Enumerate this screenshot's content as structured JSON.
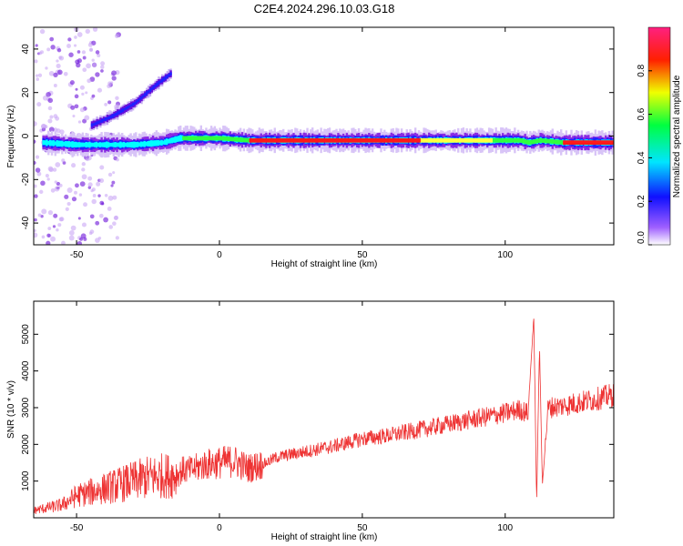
{
  "title": "C2E4.2024.296.10.03.G18",
  "colorbar": {
    "label": "Normalized spectral amplitude",
    "ticks": [
      "0.0",
      "0.2",
      "0.4",
      "0.6",
      "0.8"
    ]
  },
  "chart_data": [
    {
      "type": "heatmap",
      "xlabel": "Height of straight line (km)",
      "ylabel": "Frequency (Hz)",
      "xlim": [
        -65,
        138
      ],
      "ylim": [
        -50,
        50
      ],
      "xticks": [
        -50,
        0,
        50,
        100
      ],
      "yticks": [
        40,
        20,
        0,
        -20,
        -40
      ],
      "colorbar_range": [
        0,
        1
      ],
      "colors": [
        "#ffffff",
        "#7f00ff",
        "#0000ff",
        "#00ffff",
        "#00ff00",
        "#ffff00",
        "#ff0000",
        "#ff1493"
      ],
      "ridges": [
        {
          "x": [
            -62,
            -50,
            -40,
            -30,
            -20,
            -14,
            -5,
            0,
            10,
            30,
            60,
            90,
            105,
            108,
            112,
            120,
            138
          ],
          "y": [
            -3,
            -4,
            -4,
            -4,
            -3,
            -1,
            -1,
            -1,
            -2,
            -2,
            -2,
            -2,
            -2,
            -3,
            -2,
            -3,
            -3
          ]
        },
        {
          "x": [
            -45,
            -38,
            -30,
            -22,
            -17
          ],
          "y": [
            5,
            9,
            15,
            24,
            29
          ]
        }
      ]
    },
    {
      "type": "line",
      "xlabel": "Height of straight line (km)",
      "ylabel": "SNR (10 * v/v)",
      "xlim": [
        -65,
        138
      ],
      "ylim": [
        0,
        5900
      ],
      "xticks": [
        -50,
        0,
        50,
        100
      ],
      "yticks": [
        1000,
        2000,
        3000,
        4000,
        5000
      ],
      "color": "#ee3333",
      "series": [
        {
          "x": [
            -65,
            -55,
            -50,
            -45,
            -40,
            -35,
            -30,
            -25,
            -20,
            -15,
            -13,
            -10,
            -5,
            0,
            5,
            10,
            15,
            20,
            30,
            40,
            50,
            60,
            70,
            80,
            90,
            100,
            105,
            108,
            110,
            111,
            112,
            113,
            115,
            120,
            130,
            138
          ],
          "y": [
            200,
            350,
            600,
            700,
            800,
            900,
            1000,
            1100,
            1150,
            1150,
            1300,
            1300,
            1450,
            1500,
            1550,
            1350,
            1450,
            1650,
            1800,
            1950,
            2150,
            2250,
            2400,
            2550,
            2700,
            2850,
            2950,
            2850,
            5500,
            400,
            4700,
            900,
            3000,
            3050,
            3200,
            3350
          ]
        }
      ]
    }
  ]
}
